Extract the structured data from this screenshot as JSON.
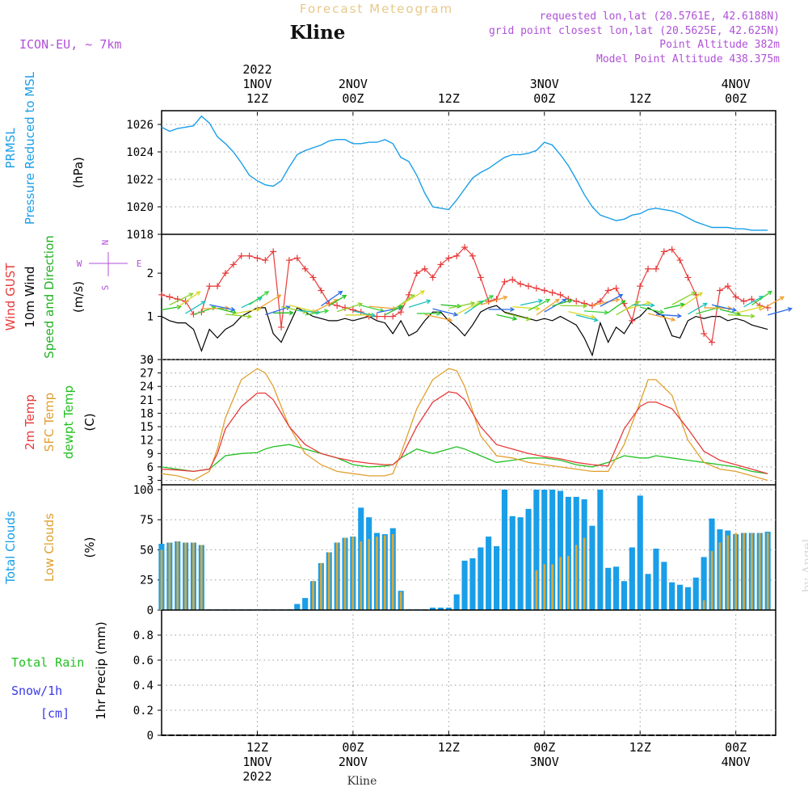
{
  "header": {
    "title": "Forecast Meteogram",
    "location": "Kline",
    "model": "ICON-EU, ~ 7km",
    "requested": "requested lon,lat (20.5761E, 42.6188N)",
    "grid_point": "grid point closest lon,lat (20.5625E, 42.625N)",
    "point_altitude": "Point Altitude 382m",
    "model_altitude": "Model Point Altitude 438.375m",
    "footer_location": "Kline",
    "watermark": "by Angel"
  },
  "time_axis": {
    "top_labels": [
      {
        "lines": [
          "2022",
          "1NOV",
          "12Z"
        ],
        "hour": 12
      },
      {
        "lines": [
          "2NOV",
          "00Z"
        ],
        "hour": 24
      },
      {
        "lines": [
          "12Z"
        ],
        "hour": 36
      },
      {
        "lines": [
          "3NOV",
          "00Z"
        ],
        "hour": 48
      },
      {
        "lines": [
          "12Z"
        ],
        "hour": 60
      },
      {
        "lines": [
          "4NOV",
          "00Z"
        ],
        "hour": 72
      }
    ],
    "bottom_labels": [
      {
        "lines": [
          "12Z",
          "1NOV",
          "2022"
        ],
        "hour": 12
      },
      {
        "lines": [
          "00Z",
          "2NOV"
        ],
        "hour": 24
      },
      {
        "lines": [
          "12Z"
        ],
        "hour": 36
      },
      {
        "lines": [
          "00Z",
          "3NOV"
        ],
        "hour": 48
      },
      {
        "lines": [
          "12Z"
        ],
        "hour": 60
      },
      {
        "lines": [
          "00Z",
          "4NOV"
        ],
        "hour": 72
      }
    ],
    "start_hour": 0,
    "end_hour": 77
  },
  "chart_data": [
    {
      "type": "line",
      "panel": "pressure",
      "left_labels": [
        "PRMSL",
        "Pressure Reduced to MSL"
      ],
      "unit": "(hPa)",
      "yticks": [
        "1018",
        "1020",
        "1022",
        "1024",
        "1026"
      ],
      "ylim": [
        1018,
        1027
      ],
      "colors": {
        "line": "#1a9ee8",
        "label": "#1a9ee8"
      },
      "x": [
        0,
        1,
        2,
        3,
        4,
        5,
        6,
        7,
        8,
        9,
        10,
        11,
        12,
        13,
        14,
        15,
        16,
        17,
        18,
        19,
        20,
        21,
        22,
        23,
        24,
        25,
        26,
        27,
        28,
        29,
        30,
        31,
        32,
        33,
        34,
        35,
        36,
        37,
        38,
        39,
        40,
        41,
        42,
        43,
        44,
        45,
        46,
        47,
        48,
        49,
        50,
        51,
        52,
        53,
        54,
        55,
        56,
        57,
        58,
        59,
        60,
        61,
        62,
        63,
        64,
        65,
        66,
        67,
        68,
        69,
        70,
        71,
        72,
        73,
        74,
        75,
        76
      ],
      "series": [
        {
          "values": [
            1025.8,
            1025.5,
            1025.7,
            1025.8,
            1025.9,
            1026.6,
            1026.1,
            1025.1,
            1024.6,
            1024.0,
            1023.2,
            1022.3,
            1021.9,
            1021.6,
            1021.5,
            1021.9,
            1022.9,
            1023.8,
            1024.1,
            1024.3,
            1024.5,
            1024.8,
            1024.9,
            1024.9,
            1024.6,
            1024.6,
            1024.7,
            1024.7,
            1024.9,
            1024.6,
            1023.6,
            1023.3,
            1022.3,
            1021.0,
            1020.0,
            1019.9,
            1019.8,
            1020.5,
            1021.3,
            1022.1,
            1022.5,
            1022.8,
            1023.2,
            1023.6,
            1023.8,
            1023.8,
            1023.9,
            1024.1,
            1024.7,
            1024.5,
            1023.8,
            1023.0,
            1022.0,
            1020.9,
            1020.0,
            1019.4,
            1019.2,
            1019.0,
            1019.1,
            1019.4,
            1019.5,
            1019.8,
            1019.9,
            1019.8,
            1019.7,
            1019.5,
            1019.2,
            1018.9,
            1018.7,
            1018.5,
            1018.5,
            1018.5,
            1018.4,
            1018.4,
            1018.3,
            1018.3,
            1018.3
          ]
        }
      ]
    },
    {
      "type": "line",
      "panel": "wind",
      "left_labels": [
        "Wind GUST",
        "10m Wind",
        "Speed and Direction"
      ],
      "unit": "(m/s)",
      "compass": [
        "N",
        "W",
        "E",
        "S"
      ],
      "yticks": [
        "0",
        "1",
        "2"
      ],
      "ylim": [
        0,
        2.9
      ],
      "colors": {
        "gust": "#e83a3a",
        "wind": "#000000",
        "direction": "#22b022"
      },
      "x": [
        0,
        1,
        2,
        3,
        4,
        5,
        6,
        7,
        8,
        9,
        10,
        11,
        12,
        13,
        14,
        15,
        16,
        17,
        18,
        19,
        20,
        21,
        22,
        23,
        24,
        25,
        26,
        27,
        28,
        29,
        30,
        31,
        32,
        33,
        34,
        35,
        36,
        37,
        38,
        39,
        40,
        41,
        42,
        43,
        44,
        45,
        46,
        47,
        48,
        49,
        50,
        51,
        52,
        53,
        54,
        55,
        56,
        57,
        58,
        59,
        60,
        61,
        62,
        63,
        64,
        65,
        66,
        67,
        68,
        69,
        70,
        71,
        72,
        73,
        74,
        75,
        76
      ],
      "series": [
        {
          "name": "Wind GUST",
          "values": [
            1.5,
            1.45,
            1.4,
            1.35,
            1.05,
            1.1,
            1.7,
            1.7,
            2.0,
            2.2,
            2.4,
            2.4,
            2.35,
            2.3,
            2.5,
            0.75,
            2.3,
            2.35,
            2.1,
            1.9,
            1.6,
            1.3,
            1.25,
            1.2,
            1.15,
            1.1,
            1.0,
            1.0,
            1.0,
            1.0,
            1.1,
            1.5,
            2.0,
            2.1,
            1.9,
            2.2,
            2.35,
            2.4,
            2.6,
            2.4,
            1.9,
            1.35,
            1.4,
            1.8,
            1.85,
            1.75,
            1.7,
            1.65,
            1.6,
            1.55,
            1.5,
            1.4,
            1.35,
            1.3,
            1.25,
            1.35,
            1.6,
            1.65,
            1.3,
            0.9,
            1.7,
            2.1,
            2.1,
            2.5,
            2.55,
            2.3,
            1.9,
            1.5,
            0.6,
            0.4,
            1.6,
            1.7,
            1.45,
            1.35,
            1.4,
            1.25,
            1.2
          ]
        },
        {
          "name": "10m Wind",
          "values": [
            1.0,
            0.9,
            0.85,
            0.85,
            0.7,
            0.2,
            0.7,
            0.5,
            0.7,
            0.8,
            1.0,
            1.1,
            1.2,
            1.2,
            0.6,
            0.4,
            0.8,
            1.2,
            1.1,
            1.0,
            0.95,
            0.9,
            0.9,
            0.95,
            0.9,
            0.95,
            1.0,
            0.9,
            0.85,
            0.6,
            0.9,
            0.55,
            0.65,
            0.9,
            1.1,
            1.1,
            0.9,
            0.75,
            0.55,
            0.8,
            1.1,
            1.2,
            1.25,
            1.1,
            1.05,
            1.0,
            0.95,
            0.9,
            0.95,
            0.9,
            1.0,
            0.9,
            0.8,
            0.5,
            0.1,
            0.85,
            0.4,
            0.75,
            0.6,
            0.9,
            1.0,
            1.2,
            1.1,
            1.0,
            0.55,
            0.5,
            0.9,
            1.0,
            0.95,
            1.0,
            1.0,
            0.9,
            0.95,
            0.9,
            0.8,
            0.75,
            0.7
          ]
        }
      ]
    },
    {
      "type": "line",
      "panel": "temperature",
      "left_labels": [
        "2m Temp",
        "SFC Temp",
        "dewpt Temp"
      ],
      "unit": "(C)",
      "yticks": [
        "3",
        "6",
        "9",
        "12",
        "15",
        "18",
        "21",
        "24",
        "27",
        "30"
      ],
      "ylim": [
        2,
        30
      ],
      "colors": {
        "t2m": "#e83a3a",
        "sfc": "#e0a030",
        "dewpt": "#22c022"
      },
      "x": [
        0,
        2,
        4,
        6,
        7,
        8,
        10,
        12,
        13,
        14,
        16,
        18,
        20,
        22,
        24,
        26,
        28,
        29,
        30,
        32,
        34,
        36,
        37,
        38,
        40,
        42,
        44,
        46,
        48,
        50,
        52,
        54,
        56,
        58,
        60,
        61,
        62,
        64,
        66,
        68,
        70,
        72,
        74,
        76
      ],
      "series": [
        {
          "name": "2m Temp",
          "values": [
            5.5,
            5.3,
            5.0,
            5.5,
            9,
            14.5,
            19.5,
            22.5,
            22.5,
            21,
            15,
            11,
            9,
            8,
            7.3,
            6.8,
            6.5,
            6.5,
            8,
            15,
            20.5,
            22.8,
            22.5,
            21,
            15,
            11,
            10,
            9,
            8.3,
            7.8,
            7,
            6.5,
            6.2,
            14.5,
            19.5,
            20.5,
            20.5,
            19,
            14.5,
            9.5,
            7.5,
            6.5,
            5.5,
            4.5
          ]
        },
        {
          "name": "SFC Temp",
          "values": [
            4.5,
            4,
            3,
            5,
            10,
            17,
            25.5,
            28,
            27,
            24,
            15,
            9,
            6.5,
            5,
            4.5,
            4,
            4,
            4.5,
            9,
            19,
            25.5,
            28,
            27.5,
            24,
            13,
            8.5,
            8,
            7,
            6.5,
            6,
            5.5,
            5,
            5,
            11,
            20.5,
            25.5,
            25.5,
            22,
            12,
            7,
            5.5,
            5,
            4,
            3
          ]
        },
        {
          "name": "dewpt Temp",
          "values": [
            6,
            5.5,
            5,
            5.5,
            7,
            8.5,
            9,
            9.2,
            10,
            10.5,
            11,
            10,
            9,
            8,
            6.5,
            6,
            6.2,
            6.5,
            8,
            10,
            9,
            10,
            10.5,
            10,
            8.5,
            7,
            7.5,
            8,
            8,
            7.5,
            6.5,
            6,
            7,
            8.5,
            8,
            8,
            8.5,
            8,
            7.5,
            7,
            6.5,
            6,
            5,
            4.5
          ]
        }
      ]
    },
    {
      "type": "bar",
      "panel": "clouds",
      "left_labels": [
        "Total Clouds",
        "Low Clouds"
      ],
      "unit": "(%)",
      "yticks": [
        "0",
        "25",
        "50",
        "75",
        "100"
      ],
      "ylim": [
        0,
        104
      ],
      "colors": {
        "total": "#1a9ee8",
        "low": "#d9a83a"
      },
      "x": [
        0,
        1,
        2,
        3,
        4,
        5,
        6,
        7,
        8,
        9,
        10,
        11,
        12,
        13,
        14,
        15,
        16,
        17,
        18,
        19,
        20,
        21,
        22,
        23,
        24,
        25,
        26,
        27,
        28,
        29,
        30,
        31,
        32,
        33,
        34,
        35,
        36,
        37,
        38,
        39,
        40,
        41,
        42,
        43,
        44,
        45,
        46,
        47,
        48,
        49,
        50,
        51,
        52,
        53,
        54,
        55,
        56,
        57,
        58,
        59,
        60,
        61,
        62,
        63,
        64,
        65,
        66,
        67,
        68,
        69,
        70,
        71,
        72,
        73,
        74,
        75,
        76
      ],
      "series": [
        {
          "name": "Total Clouds",
          "values": [
            55,
            56,
            57,
            56,
            56,
            54,
            0,
            0,
            0,
            0,
            0,
            0,
            0,
            0,
            0,
            0,
            0,
            5,
            10,
            24,
            39,
            48,
            56,
            60,
            61,
            85,
            77,
            64,
            63,
            68,
            16,
            0,
            0,
            0,
            2,
            2,
            2,
            13,
            41,
            43,
            52,
            61,
            53,
            100,
            78,
            77,
            84,
            100,
            100,
            100,
            99,
            94,
            94,
            92,
            70,
            100,
            35,
            36,
            24,
            52,
            95,
            30,
            51,
            40,
            23,
            21,
            19,
            27,
            44,
            76,
            67,
            66,
            63,
            64,
            64,
            64,
            65
          ]
        },
        {
          "name": "Low Clouds",
          "values": [
            50,
            56,
            57,
            56,
            56,
            54,
            0,
            0,
            0,
            0,
            0,
            0,
            0,
            0,
            0,
            0,
            0,
            0,
            0,
            24,
            39,
            48,
            56,
            60,
            61,
            57,
            59,
            61,
            62,
            63,
            15,
            0,
            0,
            0,
            0,
            0,
            0,
            0,
            0,
            0,
            0,
            0,
            0,
            0,
            0,
            0,
            0,
            33,
            38,
            38,
            44,
            45,
            54,
            60,
            0,
            0,
            0,
            0,
            0,
            0,
            0,
            0,
            0,
            0,
            0,
            0,
            0,
            0,
            8,
            49,
            56,
            62,
            64,
            64,
            64,
            64,
            64
          ]
        }
      ]
    },
    {
      "type": "bar",
      "panel": "precip",
      "left_labels": [
        "Total  Rain",
        "Snow/1h",
        "[cm]"
      ],
      "unit": "1hr Precip (mm)",
      "yticks": [
        "0",
        "0.2",
        "0.4",
        "0.6",
        "0.8"
      ],
      "ylim": [
        0,
        1.0
      ],
      "colors": {
        "rain": "#22c022",
        "snow": "#3a3ae8"
      },
      "x": [
        0,
        76
      ],
      "series": [
        {
          "name": "Total Rain",
          "values": [
            0,
            0
          ]
        }
      ]
    }
  ]
}
